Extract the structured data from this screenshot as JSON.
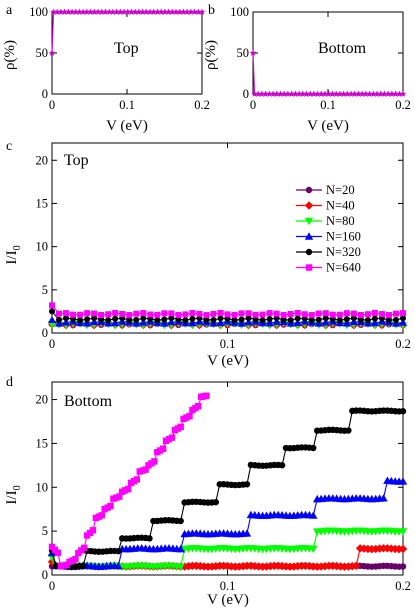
{
  "chart_data": [
    {
      "panel_label": "a",
      "type": "line",
      "annotation": "Top",
      "xlabel": "V (eV)",
      "ylabel": "ρ(%)",
      "xlim": [
        0,
        0.2
      ],
      "ylim": [
        0,
        100
      ],
      "xticks": [
        "0",
        "0.1",
        "0.2"
      ],
      "yticks": [
        "0",
        "50",
        "100"
      ],
      "series": [
        {
          "color": "#cc00cc",
          "marker": "star",
          "x": [
            0,
            0.002,
            0.2
          ],
          "y": [
            50,
            100,
            100
          ]
        }
      ]
    },
    {
      "panel_label": "b",
      "type": "line",
      "annotation": "Bottom",
      "xlabel": "V (eV)",
      "ylabel": "ρ(%)",
      "xlim": [
        0,
        0.2
      ],
      "ylim": [
        0,
        100
      ],
      "xticks": [
        "0",
        "0.1",
        "0.2"
      ],
      "yticks": [
        "0",
        "50",
        "100"
      ],
      "series": [
        {
          "color": "#cc00cc",
          "marker": "star",
          "x": [
            0,
            0.002,
            0.2
          ],
          "y": [
            50,
            0,
            0
          ]
        }
      ]
    },
    {
      "panel_label": "c",
      "type": "line",
      "annotation": "Top",
      "xlabel": "V (eV)",
      "ylabel": "I/I",
      "ylabel_sub": "0",
      "xlim": [
        0,
        0.2
      ],
      "ylim": [
        0,
        22
      ],
      "xticks": [
        "0",
        "0.1",
        "0.2"
      ],
      "yticks": [
        "0",
        "5",
        "10",
        "15",
        "20"
      ],
      "legend": "right",
      "series": [
        {
          "name": "N=20",
          "color": "#660066",
          "marker": "circle",
          "start": 1.0,
          "level": 1.0
        },
        {
          "name": "N=40",
          "color": "#ff0000",
          "marker": "diamond",
          "start": 1.0,
          "level": 1.0
        },
        {
          "name": "N=80",
          "color": "#00ff00",
          "marker": "tri-down",
          "start": 1.0,
          "level": 1.0
        },
        {
          "name": "N=160",
          "color": "#0000ff",
          "marker": "tri-up",
          "start": 1.5,
          "level": 1.2
        },
        {
          "name": "N=320",
          "color": "#000000",
          "marker": "circle",
          "start": 2.5,
          "level": 1.6
        },
        {
          "name": "N=640",
          "color": "#ff00ff",
          "marker": "square",
          "start": 3.2,
          "level": 2.2
        }
      ]
    },
    {
      "panel_label": "d",
      "type": "line",
      "annotation": "Bottom",
      "xlabel": "V (eV)",
      "ylabel": "I/I",
      "ylabel_sub": "0",
      "xlim": [
        0,
        0.2
      ],
      "ylim": [
        0,
        22
      ],
      "xticks": [
        "0",
        "0.1",
        "0.2"
      ],
      "yticks": [
        "0",
        "5",
        "10",
        "15",
        "20"
      ],
      "series": [
        {
          "name": "N=20",
          "color": "#660066",
          "marker": "circle",
          "start": 1.0,
          "steps": [
            [
              0.175,
              1.1
            ]
          ],
          "levels": [
            1.0,
            1.0
          ]
        },
        {
          "name": "N=40",
          "color": "#ff0000",
          "marker": "diamond",
          "start": 1.5,
          "steps": [
            [
              0.175
            ]
          ],
          "levels": [
            1.0,
            3.0
          ]
        },
        {
          "name": "N=80",
          "color": "#00ff00",
          "marker": "tri-down",
          "start": 2.0,
          "steps": [
            [
              0.075
            ],
            [
              0.15
            ]
          ],
          "levels": [
            1.0,
            3.0,
            5.0
          ]
        },
        {
          "name": "N=160",
          "color": "#0000ff",
          "marker": "tri-up",
          "start": 2.5,
          "steps": [
            [
              0.038
            ],
            [
              0.075
            ],
            [
              0.113
            ],
            [
              0.15
            ],
            [
              0.19
            ]
          ],
          "levels": [
            1.0,
            3.0,
            4.7,
            6.8,
            8.7,
            10.7
          ]
        },
        {
          "name": "N=320",
          "color": "#000000",
          "marker": "circle",
          "start": 2.8,
          "steps": [
            [
              0.019
            ],
            [
              0.038
            ],
            [
              0.057
            ],
            [
              0.075
            ],
            [
              0.094
            ],
            [
              0.113
            ],
            [
              0.132
            ],
            [
              0.15
            ],
            [
              0.17
            ]
          ],
          "levels": [
            1.0,
            2.7,
            4.2,
            6.2,
            8.3,
            10.3,
            12.5,
            14.5,
            16.5,
            18.7,
            20.7
          ]
        }
      ],
      "series_step": {
        "name": "N=640",
        "color": "#ff00ff",
        "marker": "square",
        "x": [
          0,
          0.005,
          0.01,
          0.015,
          0.02,
          0.025,
          0.03,
          0.035,
          0.04,
          0.045,
          0.05,
          0.055,
          0.06,
          0.065,
          0.07,
          0.075,
          0.08,
          0.085,
          0.088
        ],
        "y": [
          3.2,
          1.0,
          1.5,
          2.5,
          4.5,
          6.5,
          7.5,
          8.7,
          9.5,
          10.5,
          11.8,
          12.5,
          14.0,
          15.3,
          16.5,
          17.8,
          18.8,
          20.3,
          20.6
        ]
      }
    }
  ]
}
